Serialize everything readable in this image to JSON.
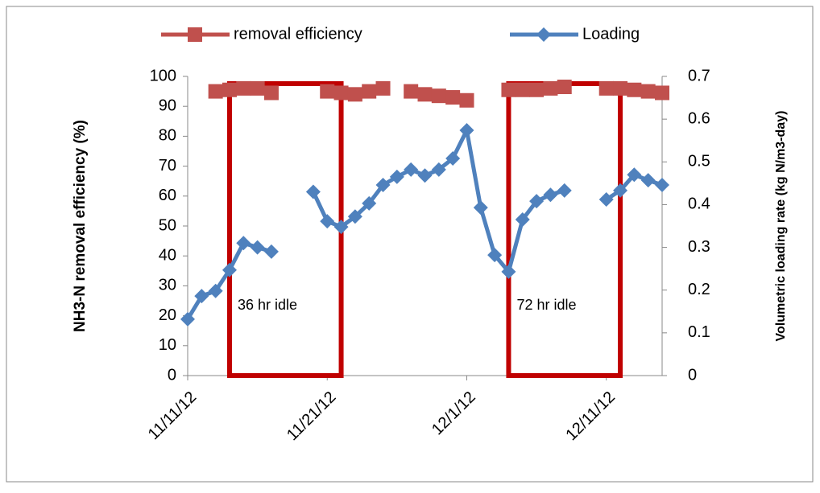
{
  "chart_data": {
    "type": "line",
    "x": [
      "2012-11-11",
      "2012-11-12",
      "2012-11-13",
      "2012-11-14",
      "2012-11-15",
      "2012-11-16",
      "2012-11-17",
      "2012-11-18",
      "2012-11-19",
      "2012-11-20",
      "2012-11-21",
      "2012-11-22",
      "2012-11-23",
      "2012-11-24",
      "2012-11-25",
      "2012-11-26",
      "2012-11-27",
      "2012-11-28",
      "2012-11-29",
      "2012-11-30",
      "2012-12-01",
      "2012-12-02",
      "2012-12-03",
      "2012-12-04",
      "2012-12-05",
      "2012-12-06",
      "2012-12-07",
      "2012-12-08",
      "2012-12-09",
      "2012-12-10",
      "2012-12-11",
      "2012-12-12",
      "2012-12-13",
      "2012-12-14",
      "2012-12-15"
    ],
    "series": [
      {
        "name": "removal efficiency",
        "color": "#c0504d",
        "marker": "square",
        "axis": "y",
        "values": [
          null,
          null,
          95,
          95.5,
          96,
          96,
          94.5,
          null,
          null,
          null,
          95,
          94.5,
          94,
          95,
          96,
          null,
          95,
          94,
          93.5,
          93,
          92,
          null,
          null,
          95.5,
          95.5,
          95.5,
          96,
          96.5,
          null,
          null,
          96,
          96,
          95.5,
          95,
          94.5
        ]
      },
      {
        "name": "Loading",
        "color": "#4f81bd",
        "marker": "diamond",
        "axis": "y2",
        "values": [
          0.132,
          0.186,
          0.198,
          0.247,
          0.31,
          0.3,
          0.29,
          null,
          null,
          0.43,
          0.361,
          0.348,
          0.372,
          0.403,
          0.446,
          0.465,
          0.482,
          0.468,
          0.482,
          0.508,
          0.574,
          0.393,
          0.282,
          0.243,
          0.365,
          0.408,
          0.423,
          0.433,
          null,
          null,
          0.412,
          0.433,
          0.47,
          0.457,
          0.446
        ]
      }
    ],
    "xlim": [
      "2012-11-11",
      "2012-12-15"
    ],
    "xticks": [
      {
        "value": "2012-11-11",
        "label": "11/11/12"
      },
      {
        "value": "2012-11-21",
        "label": "11/21/12"
      },
      {
        "value": "2012-12-01",
        "label": "12/1/12"
      },
      {
        "value": "2012-12-11",
        "label": "12/11/12"
      }
    ],
    "ylim": [
      0,
      100
    ],
    "yticks": [
      0,
      10,
      20,
      30,
      40,
      50,
      60,
      70,
      80,
      90,
      100
    ],
    "y2lim": [
      0,
      0.7
    ],
    "y2ticks": [
      0,
      0.1,
      0.2,
      0.3,
      0.4,
      0.5,
      0.6,
      0.7
    ],
    "ylabel": "NH3-N removal efficiency  (%)",
    "y2label": "Volumetric loading rate (kg N/m3-day)",
    "legend": "top",
    "annotations": [
      {
        "text": "36 hr idle",
        "x": [
          "2012-11-14",
          "2012-11-22"
        ],
        "color": "#c00000"
      },
      {
        "text": "72 hr idle",
        "x": [
          "2012-12-04",
          "2012-12-12"
        ],
        "color": "#c00000"
      }
    ]
  }
}
